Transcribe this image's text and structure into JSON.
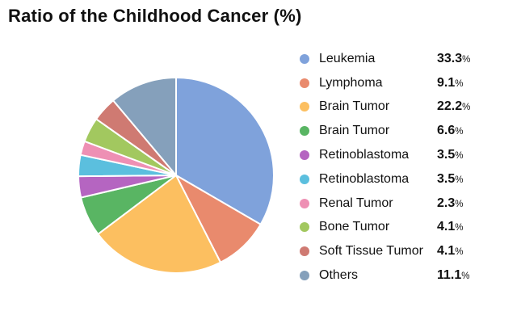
{
  "title": "Ratio of the Childhood Cancer (%)",
  "chart_data": {
    "type": "pie",
    "title": "Ratio of the Childhood Cancer (%)",
    "start_angle_deg": 0,
    "direction": "clockwise",
    "legend_position": "right",
    "value_suffix": "%",
    "background_color": "#ffffff",
    "slices": [
      {
        "label": "Leukemia",
        "value": 33.3,
        "display": "33.3",
        "color": "#7FA2DB"
      },
      {
        "label": "Lymphoma",
        "value": 9.1,
        "display": "9.1",
        "color": "#E98A6D"
      },
      {
        "label": "Brain Tumor",
        "value": 22.2,
        "display": "22.2",
        "color": "#FCBF60"
      },
      {
        "label": "Brain Tumor",
        "value": 6.6,
        "display": "6.6",
        "color": "#59B563"
      },
      {
        "label": "Retinoblastoma",
        "value": 3.5,
        "display": "3.5",
        "color": "#B565C1"
      },
      {
        "label": "Retinoblastoma",
        "value": 3.5,
        "display": "3.5",
        "color": "#5BBFDE"
      },
      {
        "label": "Renal Tumor",
        "value": 2.3,
        "display": "2.3",
        "color": "#EE90B4"
      },
      {
        "label": "Bone Tumor",
        "value": 4.1,
        "display": "4.1",
        "color": "#A2C85F"
      },
      {
        "label": "Soft Tissue Tumor",
        "value": 4.1,
        "display": "4.1",
        "color": "#CF7A72"
      },
      {
        "label": "Others",
        "value": 11.1,
        "display": "11.1",
        "color": "#85A0BB"
      }
    ]
  }
}
